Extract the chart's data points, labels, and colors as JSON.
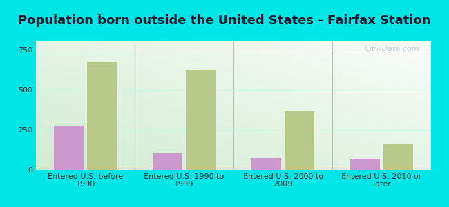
{
  "title": "Population born outside the United States - Fairfax Station",
  "categories": [
    "Entered U.S. before\n1990",
    "Entered U.S. 1990 to\n1999",
    "Entered U.S. 2000 to\n2009",
    "Entered U.S. 2010 or\nlater"
  ],
  "native_values": [
    275,
    105,
    75,
    70
  ],
  "foreign_values": [
    670,
    625,
    365,
    160
  ],
  "native_color": "#cc99cc",
  "foreign_color": "#b8c98a",
  "outer_background": "#00e5e5",
  "ylim": [
    0,
    800
  ],
  "yticks": [
    0,
    250,
    500,
    750
  ],
  "bar_width": 0.3,
  "title_fontsize": 13,
  "tick_fontsize": 8,
  "legend_fontsize": 9,
  "watermark_text": "City-Data.com"
}
